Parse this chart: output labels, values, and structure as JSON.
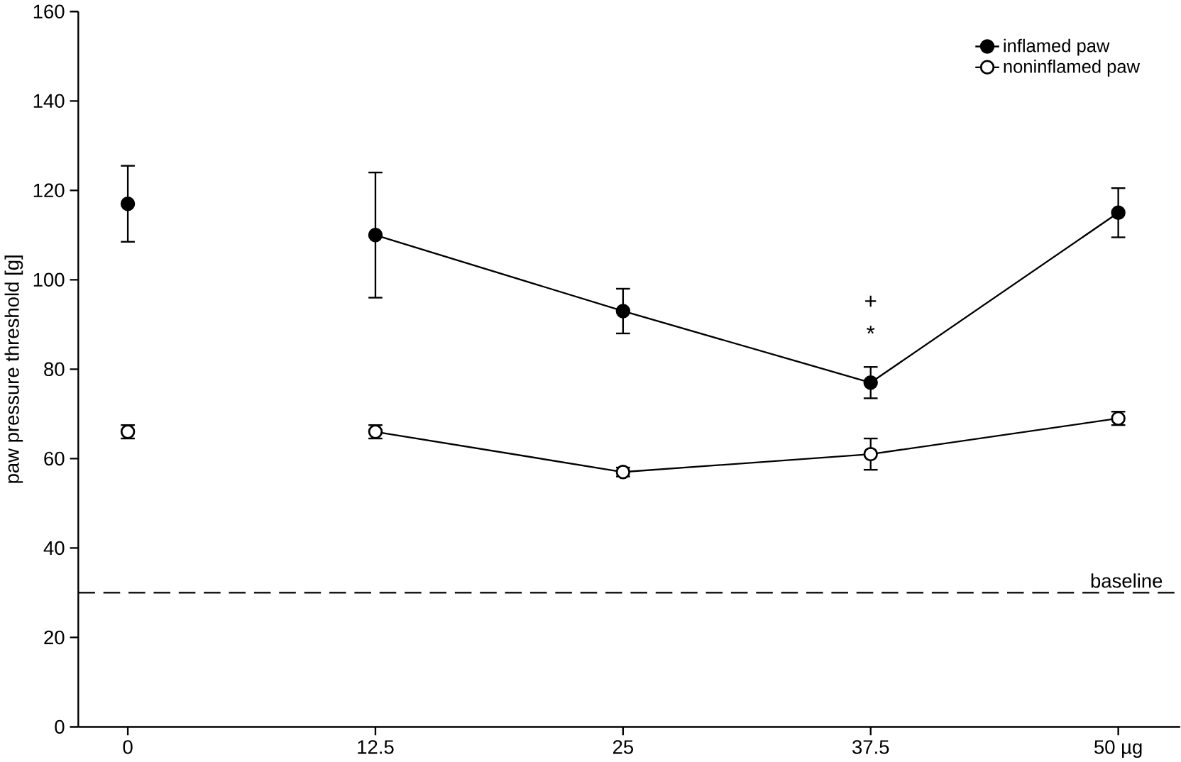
{
  "chart_data": {
    "type": "line",
    "ylabel": "paw pressure threshold [g]",
    "categories": [
      "0",
      "12.5",
      "25",
      "37.5",
      "50 µg"
    ],
    "series": [
      {
        "name": "inflamed paw",
        "color": "#000000",
        "values": [
          null,
          110,
          93,
          77,
          115
        ],
        "errors": [
          null,
          14,
          5,
          3.5,
          5.5
        ]
      },
      {
        "type": "scatter",
        "color": "#000000",
        "values": [
          117,
          null,
          null,
          null,
          null
        ],
        "errors": [
          8.5,
          null,
          null,
          null,
          null
        ]
      },
      {
        "name": "noninflamed paw",
        "color": "#ffffff",
        "values": [
          null,
          66,
          57,
          61,
          69
        ],
        "errors": [
          null,
          1.5,
          1,
          3.5,
          1.5
        ]
      },
      {
        "type": "scatter",
        "color": "#ffffff",
        "values": [
          66,
          null,
          null,
          null,
          null
        ],
        "errors": [
          1.5,
          null,
          null,
          null,
          null
        ]
      }
    ],
    "ylim": [
      0,
      160
    ],
    "yticks": [
      0,
      20,
      40,
      60,
      80,
      100,
      120,
      140,
      160
    ],
    "ref_lines": [
      {
        "axis": "y",
        "value": 30,
        "label": "baseline",
        "line_style": "dashed"
      }
    ],
    "annotations": [
      "*",
      "+"
    ],
    "marker": "circle",
    "legend": "top right",
    "grid": false
  }
}
